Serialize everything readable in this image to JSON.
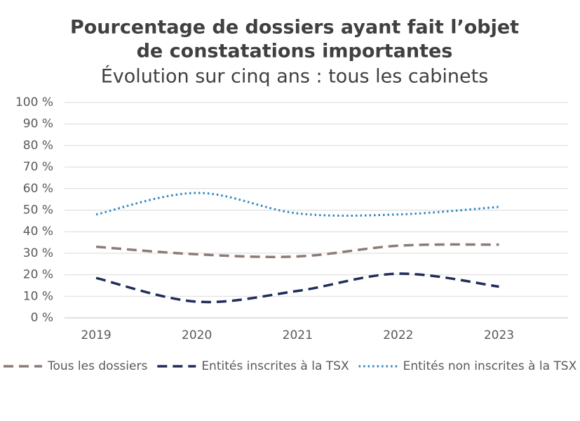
{
  "chart_data": {
    "type": "line",
    "title": [
      "Pourcentage de dossiers ayant fait l’objet",
      "de constatations importantes"
    ],
    "subtitle": "Évolution sur cinq ans : tous les cabinets",
    "categories": [
      "2019",
      "2020",
      "2021",
      "2022",
      "2023"
    ],
    "series": [
      {
        "name": "Tous les dossiers",
        "color": "#8c7b75",
        "dash": "dashed",
        "values": [
          33,
          29.5,
          28.5,
          33.5,
          34
        ]
      },
      {
        "name": "Entités inscrites à la TSX",
        "color": "#1f2d5c",
        "dash": "dashed",
        "values": [
          18.5,
          7.5,
          12.5,
          20.5,
          14.5
        ]
      },
      {
        "name": "Entités non inscrites à la TSX",
        "color": "#2e86c1",
        "dash": "dotted",
        "values": [
          48,
          58,
          48.5,
          48,
          51.5
        ]
      }
    ],
    "ylim": [
      0,
      100
    ],
    "yticks": [
      {
        "value": 0,
        "label": "0 %"
      },
      {
        "value": 10,
        "label": "10 %"
      },
      {
        "value": 20,
        "label": "20 %"
      },
      {
        "value": 30,
        "label": "30 %"
      },
      {
        "value": 40,
        "label": "40 %"
      },
      {
        "value": 50,
        "label": "50 %"
      },
      {
        "value": 60,
        "label": "60 %"
      },
      {
        "value": 70,
        "label": "70 %"
      },
      {
        "value": 80,
        "label": "80 %"
      },
      {
        "value": 90,
        "label": "90 %"
      },
      {
        "value": 100,
        "label": "100 %"
      }
    ],
    "grid": true,
    "legend": "bottom"
  }
}
